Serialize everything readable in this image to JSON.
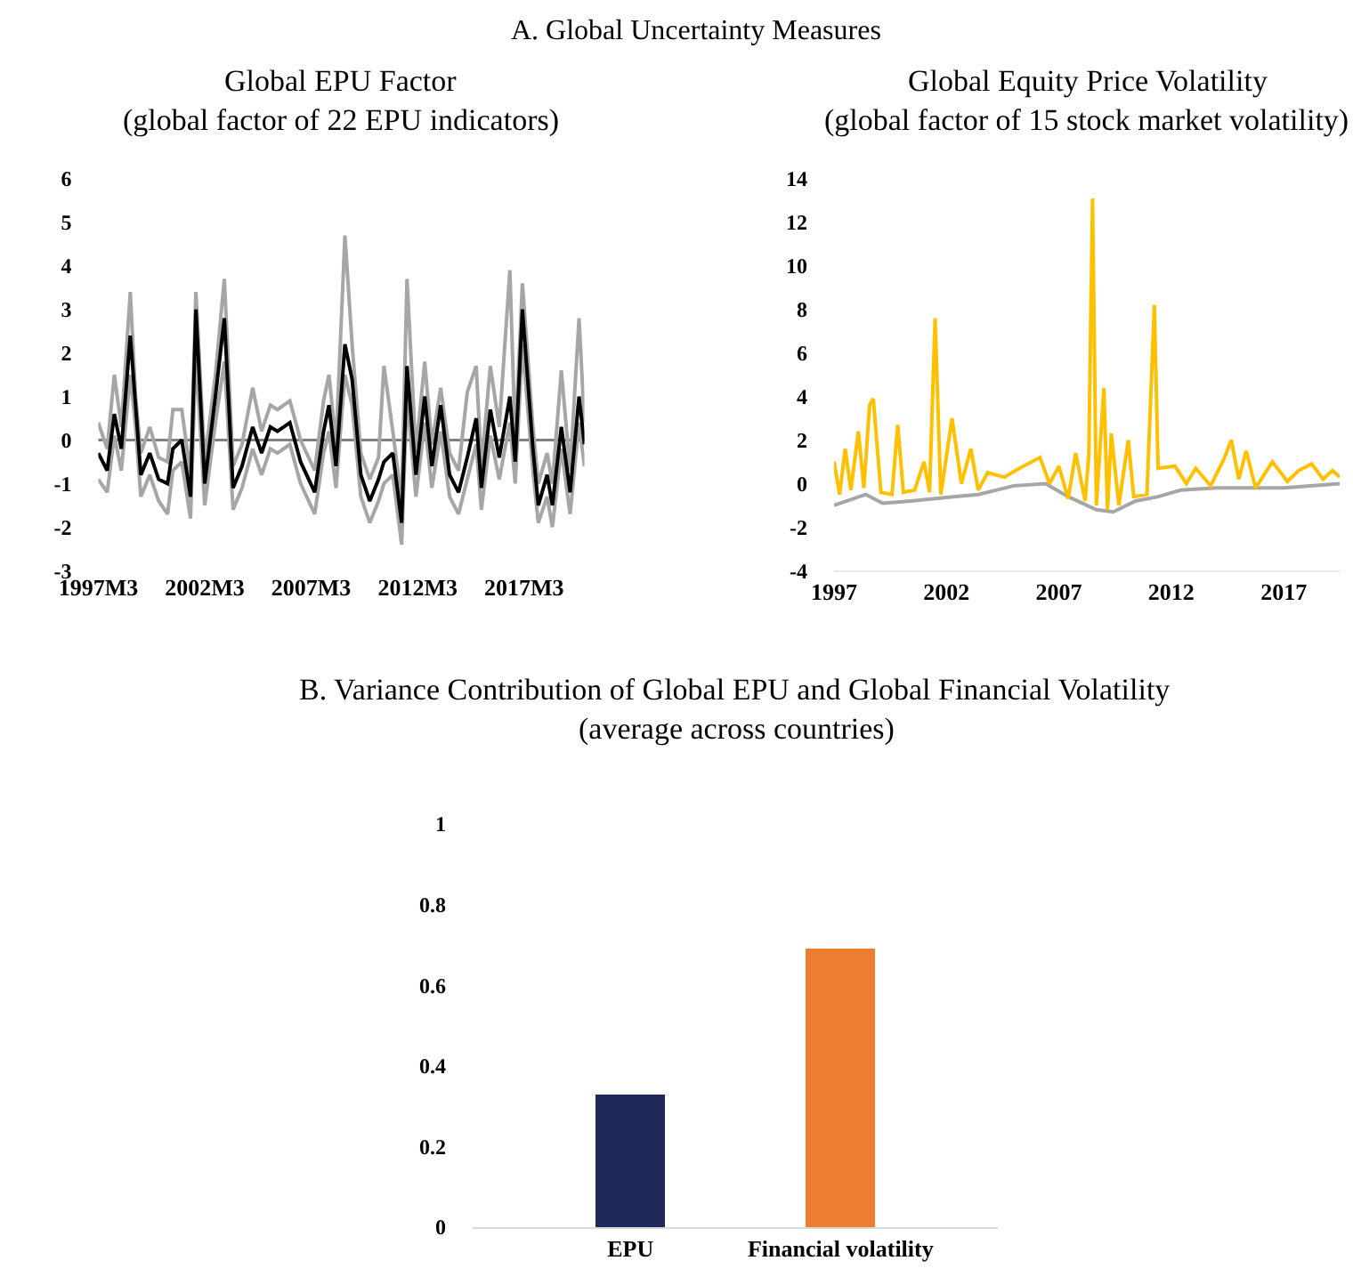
{
  "chart_data": [
    {
      "type": "line",
      "title": "Global EPU Factor",
      "subtitle": "(global factor of 22 EPU indicators)",
      "annotations": [
        "A. Global Uncertainty Measures"
      ],
      "x": [
        "1997-03",
        "1997-08",
        "1997-12",
        "1998-04",
        "1998-09",
        "1998-12",
        "1999-03",
        "1999-08",
        "2000-01",
        "2000-06",
        "2000-09",
        "2001-02",
        "2001-07",
        "2001-10",
        "2002-03",
        "2002-09",
        "2003-02",
        "2003-07",
        "2003-12",
        "2004-06",
        "2004-11",
        "2005-04",
        "2005-08",
        "2006-03",
        "2006-09",
        "2007-05",
        "2007-10",
        "2008-01",
        "2008-05",
        "2008-10",
        "2009-02",
        "2009-07",
        "2009-12",
        "2010-05",
        "2010-08",
        "2011-01",
        "2011-06",
        "2011-09",
        "2012-02",
        "2012-07",
        "2012-11",
        "2013-04",
        "2013-09",
        "2014-02",
        "2014-07",
        "2014-12",
        "2015-03",
        "2015-08",
        "2016-01",
        "2016-07",
        "2016-10",
        "2017-02",
        "2017-08",
        "2017-11",
        "2018-04",
        "2018-07",
        "2018-12",
        "2019-05",
        "2019-10",
        "2020-01"
      ],
      "series": [
        {
          "color": "#a6a6a6",
          "values": [
            0.4,
            -0.2,
            1.5,
            0.3,
            3.4,
            1.0,
            -0.3,
            0.3,
            -0.4,
            -0.5,
            0.7,
            0.7,
            -0.8,
            3.4,
            -0.5,
            1.5,
            3.7,
            -0.6,
            -0.1,
            1.2,
            0.2,
            0.8,
            0.7,
            0.9,
            0.0,
            -0.7,
            0.9,
            1.5,
            -0.1,
            4.7,
            2.2,
            -0.3,
            -0.9,
            -0.4,
            1.7,
            0.2,
            -1.4,
            3.7,
            -0.3,
            1.8,
            -0.1,
            1.2,
            -0.3,
            -0.7,
            1.1,
            1.7,
            -0.6,
            1.7,
            0.3,
            3.9,
            0.0,
            3.6,
            0.3,
            -1.0,
            -0.3,
            -1.0,
            1.6,
            -0.7,
            2.8,
            0.4
          ]
        },
        {
          "color": "#a6a6a6",
          "values": [
            -0.9,
            -1.2,
            0.1,
            -0.7,
            1.5,
            0.3,
            -1.3,
            -0.8,
            -1.4,
            -1.7,
            -0.7,
            -0.5,
            -1.8,
            2.0,
            -1.5,
            0.4,
            1.8,
            -1.6,
            -1.1,
            -0.2,
            -0.8,
            -0.2,
            -0.3,
            -0.1,
            -1.0,
            -1.7,
            -0.3,
            0.2,
            -1.1,
            1.5,
            0.8,
            -1.3,
            -1.9,
            -1.4,
            -1.0,
            -0.8,
            -2.4,
            1.0,
            -1.3,
            0.4,
            -1.1,
            0.2,
            -1.3,
            -1.7,
            -0.9,
            -0.1,
            -1.6,
            0.1,
            -0.9,
            0.4,
            -1.0,
            2.2,
            -0.7,
            -1.9,
            -1.3,
            -2.0,
            -0.2,
            -1.7,
            0.4,
            -0.6
          ]
        },
        {
          "color": "#000000",
          "values": [
            -0.3,
            -0.7,
            0.6,
            -0.2,
            2.4,
            0.8,
            -0.8,
            -0.3,
            -0.9,
            -1.0,
            -0.2,
            0.0,
            -1.3,
            3.0,
            -1.0,
            1.0,
            2.8,
            -1.1,
            -0.6,
            0.3,
            -0.3,
            0.3,
            0.2,
            0.4,
            -0.5,
            -1.2,
            0.2,
            0.8,
            -0.6,
            2.2,
            1.4,
            -0.8,
            -1.4,
            -0.9,
            -0.5,
            -0.3,
            -1.9,
            1.7,
            -0.8,
            1.0,
            -0.6,
            0.8,
            -0.8,
            -1.2,
            -0.4,
            0.5,
            -1.1,
            0.7,
            -0.4,
            1.0,
            -0.5,
            3.0,
            -0.2,
            -1.5,
            -0.8,
            -1.5,
            0.3,
            -1.2,
            1.0,
            -0.1
          ]
        }
      ],
      "xlim": [
        "1997-03",
        "2020-01"
      ],
      "xticks": [
        {
          "value": "1997-03",
          "label": "1997M3"
        },
        {
          "value": "2002-03",
          "label": "2002M3"
        },
        {
          "value": "2007-03",
          "label": "2007M3"
        },
        {
          "value": "2012-03",
          "label": "2012M3"
        },
        {
          "value": "2017-03",
          "label": "2017M3"
        }
      ],
      "ylim": [
        -3,
        6
      ],
      "yticks": [
        -3,
        -2,
        -1,
        0,
        1,
        2,
        3,
        4,
        5,
        6
      ],
      "ref_lines": [
        {
          "axis": "y",
          "value": 0,
          "color": "#808080"
        }
      ],
      "grid": false
    },
    {
      "type": "line",
      "title": "Global Equity Price Volatility",
      "subtitle": "(global factor of 15 stock market volatility)",
      "series": [
        {
          "color": "#a6a6a6",
          "x": [
            "1997-01",
            "1998-06",
            "1999-03",
            "2000-06",
            "2001-06",
            "2002-06",
            "2003-06",
            "2005-01",
            "2006-06",
            "2007-06",
            "2008-09",
            "2009-06",
            "2010-06",
            "2011-06",
            "2012-06",
            "2014-01",
            "2015-06",
            "2017-01",
            "2019-07"
          ],
          "values": [
            -1.0,
            -0.5,
            -0.9,
            -0.8,
            -0.7,
            -0.6,
            -0.5,
            -0.1,
            0.0,
            -0.6,
            -1.2,
            -1.3,
            -0.8,
            -0.6,
            -0.3,
            -0.2,
            -0.2,
            -0.2,
            0.0
          ]
        },
        {
          "color": "#ffc000",
          "x": [
            "1997-01",
            "1997-04",
            "1997-07",
            "1997-10",
            "1998-02",
            "1998-05",
            "1998-08",
            "1998-10",
            "1999-02",
            "1999-08",
            "1999-11",
            "2000-02",
            "2000-08",
            "2001-01",
            "2001-04",
            "2001-07",
            "2001-10",
            "2002-04",
            "2002-09",
            "2003-02",
            "2003-06",
            "2003-11",
            "2004-08",
            "2005-04",
            "2006-03",
            "2006-08",
            "2007-01",
            "2007-06",
            "2007-10",
            "2008-03",
            "2008-05",
            "2008-07",
            "2008-09",
            "2009-01",
            "2009-03",
            "2009-05",
            "2009-09",
            "2010-02",
            "2010-05",
            "2010-12",
            "2011-04",
            "2011-06",
            "2012-03",
            "2012-09",
            "2013-02",
            "2013-10",
            "2014-05",
            "2014-09",
            "2015-01",
            "2015-05",
            "2015-10",
            "2016-07",
            "2017-03",
            "2017-09",
            "2018-04",
            "2018-10",
            "2019-03",
            "2019-07"
          ],
          "values": [
            1.0,
            -0.5,
            1.6,
            -0.3,
            2.4,
            -0.2,
            3.6,
            3.9,
            -0.4,
            -0.5,
            2.7,
            -0.4,
            -0.3,
            1.0,
            -0.4,
            7.6,
            -0.5,
            3.0,
            0.0,
            1.6,
            -0.3,
            0.5,
            0.3,
            0.7,
            1.2,
            0.0,
            0.8,
            -0.7,
            1.4,
            -0.8,
            1.3,
            13.1,
            -1.0,
            4.4,
            -1.2,
            2.3,
            -1.0,
            2.0,
            -0.6,
            -0.5,
            8.2,
            0.7,
            0.8,
            0.0,
            0.7,
            -0.1,
            1.1,
            2.0,
            0.2,
            1.5,
            -0.2,
            1.0,
            0.1,
            0.6,
            0.9,
            0.2,
            0.6,
            0.3
          ]
        }
      ],
      "xlim": [
        "1997-01",
        "2019-07"
      ],
      "xticks": [
        {
          "value": "1997",
          "label": "1997"
        },
        {
          "value": "2002",
          "label": "2002"
        },
        {
          "value": "2007",
          "label": "2007"
        },
        {
          "value": "2012",
          "label": "2012"
        },
        {
          "value": "2017",
          "label": "2017"
        }
      ],
      "ylim": [
        -4,
        14
      ],
      "yticks": [
        -4,
        -2,
        0,
        2,
        4,
        6,
        8,
        10,
        12,
        14
      ],
      "grid": false
    },
    {
      "type": "bar",
      "title": "B. Variance Contribution of Global EPU and Global Financial Volatility",
      "subtitle": "(average across countries)",
      "categories": [
        "EPU",
        "Financial volatility"
      ],
      "values": [
        0.33,
        0.69
      ],
      "colors": [
        "#1f285a",
        "#ed7d31"
      ],
      "ylim": [
        0,
        1
      ],
      "yticks": [
        0,
        0.2,
        0.4,
        0.6,
        0.8,
        1
      ],
      "grid": false
    }
  ]
}
